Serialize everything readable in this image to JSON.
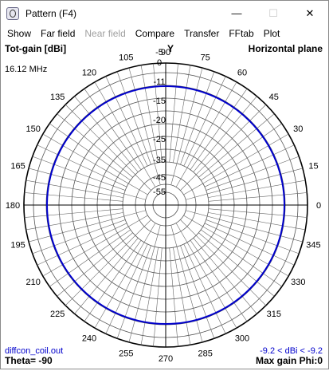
{
  "window": {
    "title": "Pattern   (F4)",
    "icon": "pattern-app-icon",
    "controls": {
      "minimize": "—",
      "maximize": "☐",
      "close": "✕"
    }
  },
  "menu": {
    "items": [
      {
        "label": "Show",
        "enabled": true
      },
      {
        "label": "Far field",
        "enabled": true
      },
      {
        "label": "Near field",
        "enabled": false
      },
      {
        "label": "Compare",
        "enabled": true
      },
      {
        "label": "Transfer",
        "enabled": true
      },
      {
        "label": "FFtab",
        "enabled": true
      },
      {
        "label": "Plot",
        "enabled": true
      }
    ]
  },
  "plot": {
    "top_left_label": "Tot-gain [dBi]",
    "top_right_label": "Horizontal plane",
    "frequency": "16.12 MHz",
    "axis_label": "Y",
    "bottom_left_file": "diffcon_coil.out",
    "bottom_left_theta": "Theta= -90",
    "bottom_right_range": "-9.2 < dBi < -9.2",
    "bottom_right_maxgain": "Max gain Phi:0",
    "angle_labels": [
      "0",
      "15",
      "30",
      "45",
      "60",
      "75",
      "90",
      "105",
      "120",
      "135",
      "150",
      "165",
      "180",
      "195",
      "210",
      "225",
      "240",
      "255",
      "270",
      "285",
      "300",
      "315",
      "330",
      "345"
    ],
    "gain_labels": [
      "-5",
      "0",
      "-11",
      "-15",
      "-20",
      "-25",
      "-35",
      "-45",
      "-55"
    ],
    "pattern_color": "#0000cc",
    "pattern_gain_dbi": -9.2
  }
}
